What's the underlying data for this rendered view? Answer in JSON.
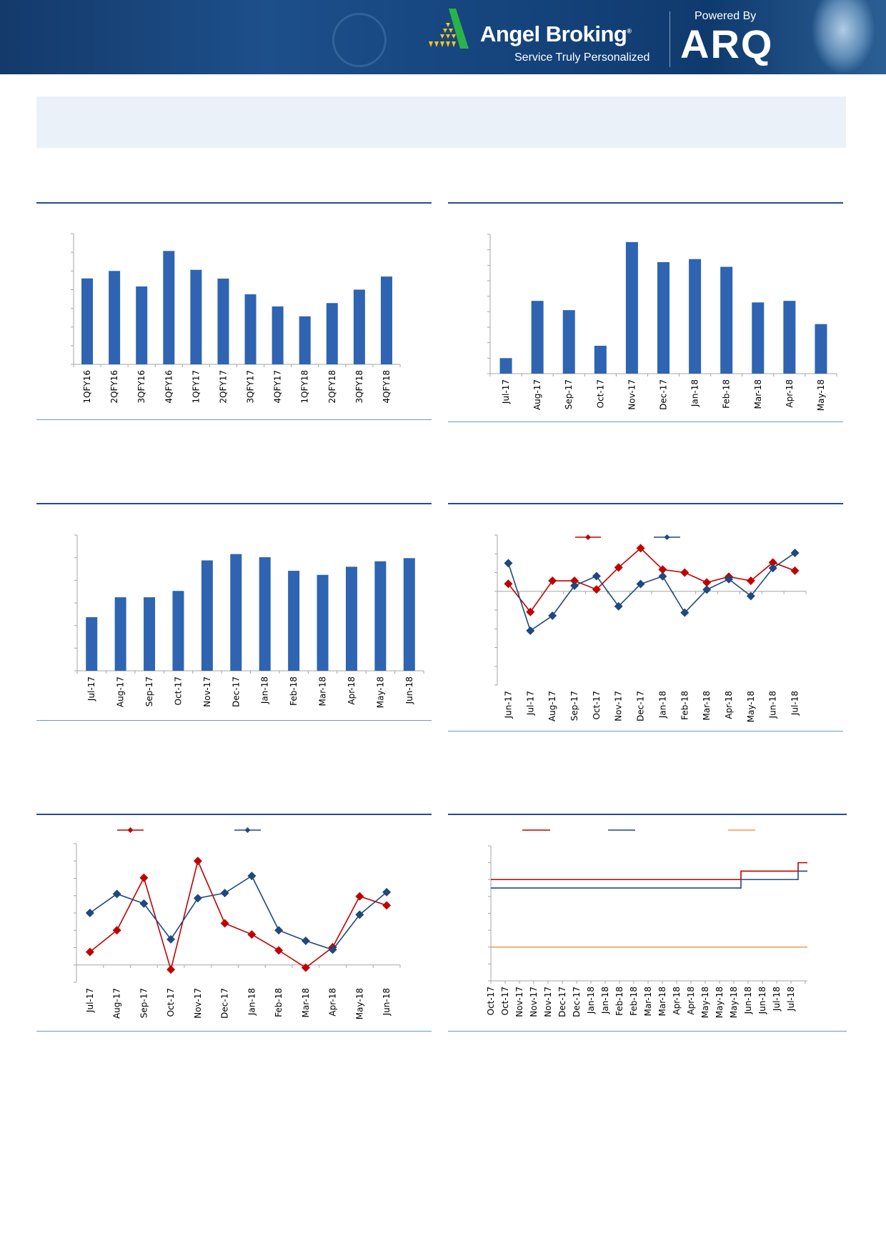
{
  "header": {
    "brand": "Angel Broking",
    "tagline": "Service Truly Personalized",
    "powered_by": "Powered By",
    "product": "ARQ",
    "colors": {
      "background": "#16457e",
      "logo_green": "#2bb34a",
      "logo_yellow": "#f5c518"
    }
  },
  "colors": {
    "bar": "#2e64b1",
    "red": "#c00000",
    "blue": "#1f497d",
    "orange": "#f79646",
    "rule": "#1f4e91",
    "summary_bg": "#ebf1f8"
  },
  "chart_data": [
    {
      "type": "bar",
      "categories": [
        "1QFY16",
        "2QFY16",
        "3QFY16",
        "4QFY16",
        "1QFY17",
        "2QFY17",
        "3QFY17",
        "4QFY17",
        "1QFY18",
        "2QFY18",
        "3QFY18",
        "4QFY18"
      ],
      "values": [
        4.6,
        5.0,
        4.17,
        6.07,
        5.06,
        4.59,
        3.75,
        3.1,
        2.57,
        3.28,
        4.0,
        4.7
      ],
      "ylim": [
        0,
        7
      ],
      "grid": false,
      "unit_note": "values in y-tick intervals; no tick labels printed"
    },
    {
      "type": "bar",
      "categories": [
        "Jul-17",
        "Aug-17",
        "Sep-17",
        "Oct-17",
        "Nov-17",
        "Dec-17",
        "Jan-18",
        "Feb-18",
        "Mar-18",
        "Apr-18",
        "May-18"
      ],
      "values": [
        1.0,
        4.7,
        4.1,
        1.8,
        8.5,
        7.2,
        7.4,
        6.9,
        4.6,
        4.7,
        3.2
      ],
      "ylim": [
        0,
        9
      ],
      "grid": false
    },
    {
      "type": "bar",
      "categories": [
        "Jul-17",
        "Aug-17",
        "Sep-17",
        "Oct-17",
        "Nov-17",
        "Dec-17",
        "Jan-18",
        "Feb-18",
        "Mar-18",
        "Apr-18",
        "May-18",
        "Jun-18"
      ],
      "values": [
        2.37,
        3.25,
        3.25,
        3.53,
        4.88,
        5.16,
        5.02,
        4.42,
        4.24,
        4.6,
        4.84,
        4.98
      ],
      "ylim": [
        0,
        6
      ],
      "grid": false
    },
    {
      "type": "line",
      "categories": [
        "Jun-17",
        "Jul-17",
        "Aug-17",
        "Sep-17",
        "Oct-17",
        "Nov-17",
        "Dec-17",
        "Jan-18",
        "Feb-18",
        "Mar-18",
        "Apr-18",
        "May-18",
        "Jun-18",
        "Jul-18"
      ],
      "series": [
        {
          "values": [
            0.4,
            -1.1,
            0.56,
            0.56,
            0.1,
            1.27,
            2.3,
            1.16,
            1.0,
            0.47,
            0.78,
            0.56,
            1.54,
            1.1
          ],
          "color": "#c00000",
          "marker": "diamond"
        },
        {
          "values": [
            1.5,
            -2.1,
            -1.3,
            0.3,
            0.81,
            -0.8,
            0.39,
            0.8,
            -1.14,
            0.09,
            0.65,
            -0.25,
            1.24,
            2.05
          ],
          "color": "#1f497d",
          "marker": "diamond"
        }
      ],
      "ylim": [
        -5,
        3
      ],
      "legend": "top",
      "grid": false
    },
    {
      "type": "line",
      "categories": [
        "Jul-17",
        "Aug-17",
        "Sep-17",
        "Oct-17",
        "Nov-17",
        "Dec-17",
        "Jan-18",
        "Feb-18",
        "Mar-18",
        "Apr-18",
        "May-18",
        "Jun-18"
      ],
      "series": [
        {
          "values": [
            0.75,
            2.0,
            5.03,
            -0.27,
            6.0,
            2.4,
            1.76,
            0.84,
            -0.16,
            1.02,
            3.96,
            3.44
          ],
          "color": "#c00000",
          "marker": "diamond"
        },
        {
          "values": [
            3.0,
            4.1,
            3.54,
            1.48,
            3.85,
            4.15,
            5.14,
            2.0,
            1.39,
            0.88,
            2.9,
            4.2
          ],
          "color": "#1f497d",
          "marker": "diamond"
        }
      ],
      "ylim": [
        -1,
        7
      ],
      "legend": "top",
      "grid": false
    },
    {
      "type": "line",
      "categories": [
        "Oct-17",
        "Oct-17",
        "Nov-17",
        "Nov-17",
        "Nov-17",
        "Dec-17",
        "Dec-17",
        "Jan-18",
        "Jan-18",
        "Feb-18",
        "Feb-18",
        "Mar-18",
        "Mar-18",
        "Apr-18",
        "Apr-18",
        "May-18",
        "May-18",
        "May-18",
        "Jun-18",
        "Jun-18",
        "Jul-18",
        "Jul-18"
      ],
      "series": [
        {
          "values": [
            6,
            6,
            6,
            6,
            6,
            6,
            6,
            6,
            6,
            6,
            6,
            6,
            6,
            6,
            6,
            6,
            6,
            6,
            6.5,
            6.5,
            6.5,
            7.0
          ],
          "color": "#c00000",
          "step": true
        },
        {
          "values": [
            5.5,
            5.5,
            5.5,
            5.5,
            5.5,
            5.5,
            5.5,
            5.5,
            5.5,
            5.5,
            5.5,
            5.5,
            5.5,
            5.5,
            5.5,
            5.5,
            5.5,
            5.5,
            6.0,
            6.0,
            6.0,
            6.5
          ],
          "color": "#1f497d",
          "step": true
        },
        {
          "values": [
            2,
            2,
            2,
            2,
            2,
            2,
            2,
            2,
            2,
            2,
            2,
            2,
            2,
            2,
            2,
            2,
            2,
            2,
            2,
            2,
            2,
            2
          ],
          "color": "#f79646",
          "step": true
        }
      ],
      "ylim": [
        0,
        8
      ],
      "legend": "top",
      "grid": false
    }
  ]
}
